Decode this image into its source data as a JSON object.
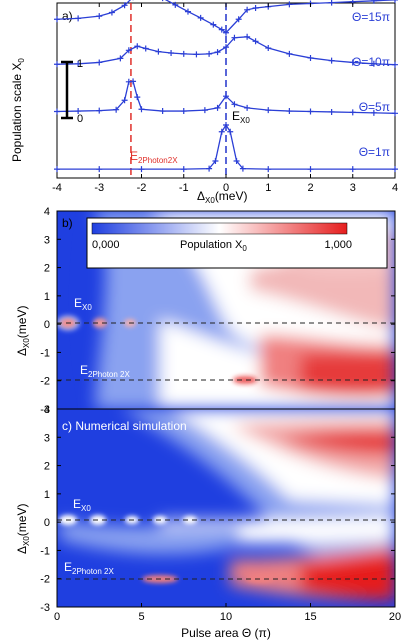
{
  "chart_data": [
    {
      "type": "line",
      "panel_label": "a)",
      "xlabel_main": "Δ",
      "xlabel_sub": "X0",
      "xlabel_unit": "(meV)",
      "ylabel_main": "Population scale X",
      "ylabel_sub": "0",
      "xlim": [
        -4,
        4
      ],
      "x_ticks": [
        "-4",
        "-3",
        "-2",
        "-1",
        "0",
        "1",
        "2",
        "3",
        "4"
      ],
      "scalebar_labels": [
        "1",
        "0"
      ],
      "vlines": [
        {
          "x": -2.25,
          "label_main": "E",
          "label_sub": "2Photon2X",
          "color": "#e0302a"
        },
        {
          "x": 0.0,
          "label_main": "E",
          "label_sub": "X0",
          "color": "#2233cc"
        }
      ],
      "series": [
        {
          "name": "Θ=15π",
          "offset": 3.0,
          "x": [
            -4,
            -3.5,
            -3,
            -2.7,
            -2.4,
            -2.2,
            -2.0,
            -1.8,
            -1.5,
            -1.2,
            -0.9,
            -0.6,
            -0.3,
            -0.1,
            0.0,
            0.3,
            0.5,
            0.7,
            1.0,
            1.5,
            2.0,
            2.5,
            3.0,
            3.5,
            4.0
          ],
          "y": [
            0.35,
            0.37,
            0.42,
            0.5,
            0.66,
            0.84,
            0.98,
            0.96,
            0.82,
            0.67,
            0.52,
            0.38,
            0.23,
            0.12,
            0.05,
            0.35,
            0.56,
            0.6,
            0.63,
            0.68,
            0.7,
            0.72,
            0.74,
            0.76,
            0.78
          ]
        },
        {
          "name": "Θ=10π",
          "offset": 2.0,
          "x": [
            -4,
            -3.5,
            -3,
            -2.5,
            -2.3,
            -2.1,
            -1.9,
            -1.6,
            -1.3,
            -1.0,
            -0.7,
            -0.4,
            -0.2,
            0.0,
            0.2,
            0.5,
            0.7,
            1.0,
            1.5,
            2.0,
            2.5,
            3.0,
            3.5,
            4.0
          ],
          "y": [
            0.35,
            0.36,
            0.39,
            0.48,
            0.66,
            0.75,
            0.7,
            0.63,
            0.6,
            0.58,
            0.57,
            0.58,
            0.62,
            0.73,
            0.94,
            0.96,
            0.86,
            0.71,
            0.58,
            0.49,
            0.43,
            0.39,
            0.36,
            0.34
          ]
        },
        {
          "name": "Θ=5π",
          "offset": 1.0,
          "x": [
            -4,
            -3.5,
            -3,
            -2.6,
            -2.4,
            -2.3,
            -2.2,
            -2.1,
            -2.0,
            -1.5,
            -1.0,
            -0.5,
            -0.2,
            0.0,
            0.2,
            0.5,
            1.0,
            1.5,
            2.0,
            2.5,
            3.0,
            3.5,
            4.0
          ],
          "y": [
            0.3,
            0.31,
            0.32,
            0.34,
            0.55,
            0.96,
            0.97,
            0.62,
            0.35,
            0.31,
            0.31,
            0.33,
            0.38,
            0.64,
            0.46,
            0.38,
            0.33,
            0.31,
            0.3,
            0.29,
            0.28,
            0.27,
            0.26
          ]
        },
        {
          "name": "Θ=1π",
          "offset": 0.0,
          "x": [
            -4,
            -3,
            -2,
            -1,
            -0.4,
            -0.25,
            -0.1,
            0.0,
            0.1,
            0.25,
            0.4,
            1.0,
            2.0,
            3.0,
            4.0
          ],
          "y": [
            0.02,
            0.02,
            0.02,
            0.02,
            0.03,
            0.2,
            0.85,
            1.0,
            0.85,
            0.2,
            0.03,
            0.02,
            0.02,
            0.02,
            0.02
          ]
        }
      ]
    },
    {
      "type": "heatmap",
      "panel_label": "b)",
      "ylabel_main": "Δ",
      "ylabel_sub": "X0",
      "ylabel_unit": "(meV)",
      "xlim": [
        0,
        20
      ],
      "ylim": [
        -3,
        4
      ],
      "y_ticks": [
        "-3",
        "-2",
        "-1",
        "0",
        "1",
        "2",
        "3",
        "4"
      ],
      "colorbar": {
        "title_main": "Population X",
        "title_sub": "0",
        "min_label": "0,000",
        "max_label": "1,000",
        "low_color": "#1f3fe0",
        "mid_color": "#ffffff",
        "high_color": "#e61e1e"
      },
      "line_labels": [
        {
          "main": "E",
          "sub": "X0",
          "y": 0.0
        },
        {
          "main": "E",
          "sub": "2Photon 2X",
          "y": -2.1
        }
      ]
    },
    {
      "type": "heatmap",
      "panel_label": "c) Numerical simulation",
      "ylabel_main": "Δ",
      "ylabel_sub": "X0",
      "ylabel_unit": "(meV)",
      "xlabel": "Pulse area Θ (π)",
      "xlim": [
        0,
        20
      ],
      "ylim": [
        -3,
        4
      ],
      "x_ticks": [
        "0",
        "5",
        "10",
        "15",
        "20"
      ],
      "y_ticks": [
        "-3",
        "-2",
        "-1",
        "0",
        "1",
        "2",
        "3",
        "4"
      ],
      "line_labels": [
        {
          "main": "E",
          "sub": "X0",
          "y": 0.0
        },
        {
          "main": "E",
          "sub": "2Photon 2X",
          "y": -2.2
        }
      ]
    }
  ]
}
